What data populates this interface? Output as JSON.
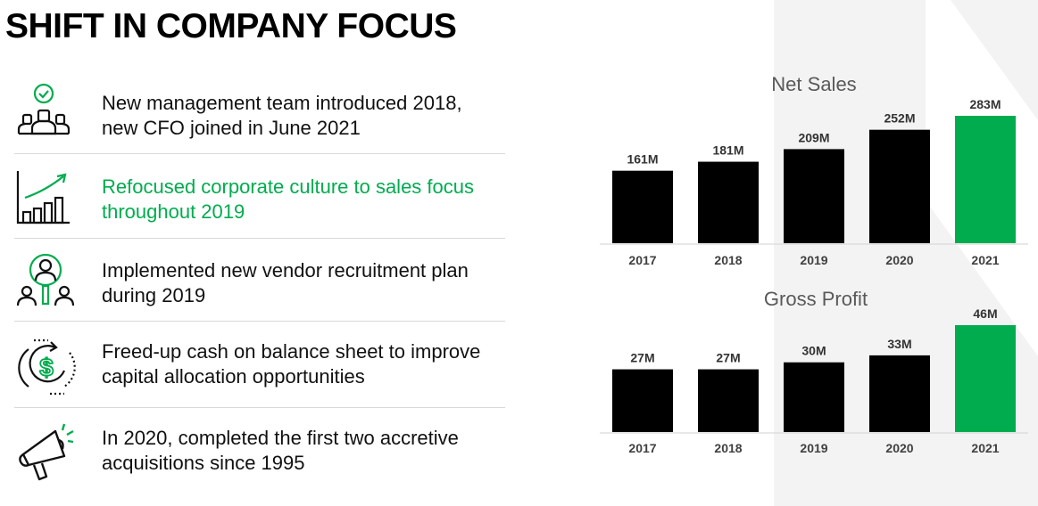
{
  "title": "SHIFT IN COMPANY FOCUS",
  "items": [
    {
      "icon": "team-check-icon",
      "text": "New management team introduced 2018, new CFO joined in June 2021",
      "highlight": false
    },
    {
      "icon": "growth-chart-icon",
      "text": "Refocused corporate culture to sales focus throughout 2019",
      "highlight": true
    },
    {
      "icon": "recruitment-magnifier-icon",
      "text": "Implemented new vendor recruitment plan during 2019",
      "highlight": false
    },
    {
      "icon": "cash-cycle-icon",
      "text": "Freed-up cash on balance sheet to improve capital allocation opportunities",
      "highlight": false
    },
    {
      "icon": "megaphone-icon",
      "text": "In 2020, completed the first two accretive acquisitions since 1995",
      "highlight": false
    }
  ],
  "colors": {
    "accent": "#00AC4E",
    "bar": "#000000",
    "title_text": "#595959",
    "label_text": "#404040"
  },
  "chart_data": [
    {
      "type": "bar",
      "title": "Net Sales",
      "categories": [
        "2017",
        "2018",
        "2019",
        "2020",
        "2021"
      ],
      "values": [
        161,
        181,
        209,
        252,
        283
      ],
      "labels": [
        "161M",
        "181M",
        "209M",
        "252M",
        "283M"
      ],
      "highlight_category": "2021",
      "ylim": [
        0,
        283
      ],
      "grid": false
    },
    {
      "type": "bar",
      "title": "Gross Profit",
      "categories": [
        "2017",
        "2018",
        "2019",
        "2020",
        "2021"
      ],
      "values": [
        27,
        27,
        30,
        33,
        46
      ],
      "labels": [
        "27M",
        "27M",
        "30M",
        "33M",
        "46M"
      ],
      "highlight_category": "2021",
      "ylim": [
        0,
        46
      ],
      "grid": false
    }
  ]
}
